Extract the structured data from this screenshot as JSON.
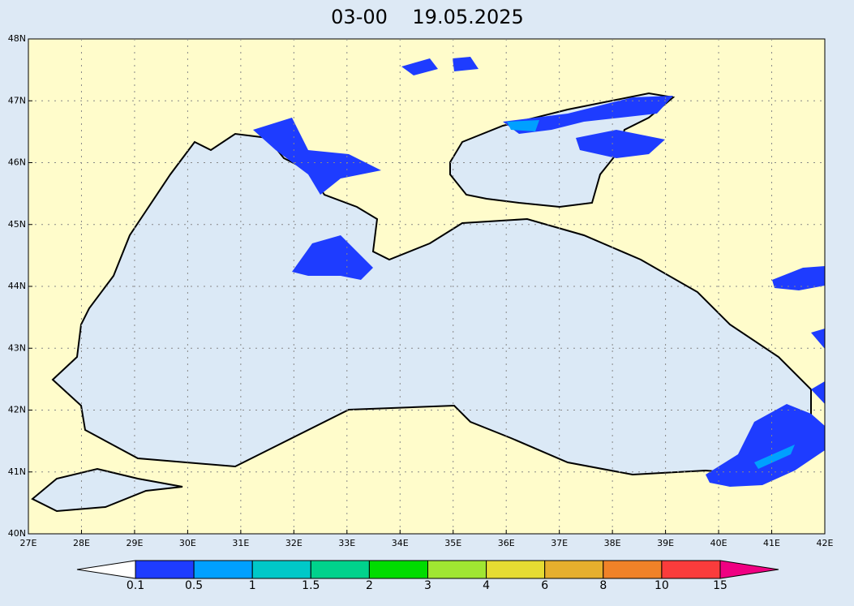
{
  "title": "03-00    19.05.2025",
  "lon_labels": [
    "27E",
    "28E",
    "29E",
    "30E",
    "31E",
    "32E",
    "33E",
    "34E",
    "35E",
    "36E",
    "37E",
    "38E",
    "39E",
    "40E",
    "41E",
    "42E"
  ],
  "lat_labels": [
    "40N",
    "41N",
    "42N",
    "43N",
    "44N",
    "45N",
    "46N",
    "47N",
    "48N"
  ],
  "colorbar": {
    "levels": [
      0.1,
      0.5,
      1,
      1.5,
      2,
      3,
      4,
      6,
      8,
      10,
      15
    ],
    "colors": [
      "#ffffff",
      "#1e3cff",
      "#00a0ff",
      "#00c8c8",
      "#00d28c",
      "#00dc00",
      "#a0e632",
      "#e6dc32",
      "#e6af2d",
      "#f08228",
      "#fa3c3c",
      "#f00082"
    ]
  }
}
